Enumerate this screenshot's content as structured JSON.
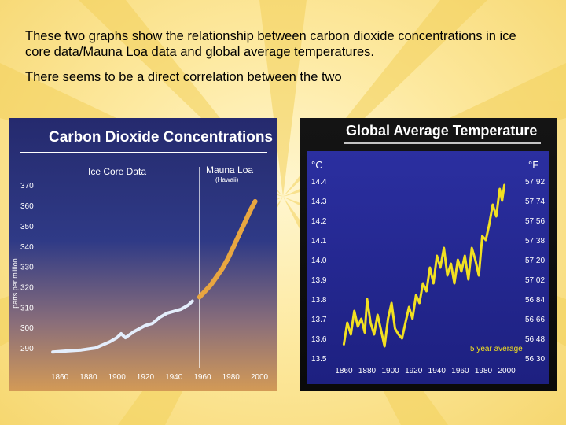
{
  "slide": {
    "paragraph1": "These two graphs show the relationship between carbon dioxide concentrations in ice core data/Mauna Loa data and global average temperatures.",
    "paragraph2": "There seems to be a direct correlation between the two"
  },
  "colors": {
    "co2_ice_line": "#e4eefc",
    "co2_mauna_line": "#e8a640",
    "temp_line": "#f2e021"
  },
  "chart_data": [
    {
      "type": "line",
      "title": "Carbon Dioxide Concentrations",
      "ylabel": "parts per million",
      "xlim": [
        1850,
        2000
      ],
      "ylim": [
        285,
        372
      ],
      "x_ticks": [
        1860,
        1880,
        1900,
        1920,
        1940,
        1960,
        1980,
        2000
      ],
      "x_tick_labels": [
        "1860",
        "1880",
        "1900",
        "1920",
        "1940",
        "1960",
        "1980",
        "2000"
      ],
      "y_ticks": [
        290,
        300,
        310,
        320,
        330,
        340,
        350,
        360,
        370
      ],
      "y_tick_labels": [
        "290",
        "300",
        "310",
        "320",
        "330",
        "340",
        "350",
        "360",
        "370"
      ],
      "divider_x": 1958,
      "annotations": {
        "ice_core": "Ice Core Data",
        "mauna_loa": "Mauna Loa",
        "hawaii": "(Hawaii)"
      },
      "series": [
        {
          "name": "Ice Core Data",
          "x": [
            1855,
            1865,
            1875,
            1885,
            1895,
            1900,
            1903,
            1906,
            1912,
            1920,
            1925,
            1930,
            1935,
            1940,
            1945,
            1950,
            1953
          ],
          "y": [
            288,
            288.5,
            289,
            290,
            293,
            295,
            297,
            295,
            298,
            301,
            302,
            305,
            307,
            308,
            309,
            311,
            313
          ]
        },
        {
          "name": "Mauna Loa",
          "x": [
            1958,
            1962,
            1966,
            1970,
            1974,
            1978,
            1982,
            1986,
            1990,
            1994,
            1997
          ],
          "y": [
            315,
            318,
            321,
            325,
            329,
            334,
            340,
            346,
            352,
            358,
            362
          ]
        }
      ]
    },
    {
      "type": "line",
      "title": "Global Average Temperature",
      "ylabel_left": "°C",
      "ylabel_right": "°F",
      "xlim": [
        1855,
        2005
      ],
      "ylim": [
        13.5,
        14.4
      ],
      "x_ticks": [
        1860,
        1880,
        1900,
        1920,
        1940,
        1960,
        1980,
        2000
      ],
      "x_tick_labels": [
        "1860",
        "1880",
        "1900",
        "1920",
        "1940",
        "1960",
        "1980",
        "2000"
      ],
      "y_ticks": [
        13.5,
        13.6,
        13.7,
        13.8,
        13.9,
        14.0,
        14.1,
        14.2,
        14.3,
        14.4
      ],
      "y_tick_labels": [
        "13.5",
        "13.6",
        "13.7",
        "13.8",
        "13.9",
        "14.0",
        "14.1",
        "14.2",
        "14.3",
        "14.4"
      ],
      "y_right_tick_labels": [
        "56.30",
        "56.48",
        "56.66",
        "56.84",
        "57.02",
        "57.20",
        "57.38",
        "57.56",
        "57.74",
        "57.92"
      ],
      "annotation": "5 year average",
      "series": [
        {
          "name": "5 year average",
          "x": [
            1860,
            1863,
            1866,
            1869,
            1872,
            1875,
            1878,
            1880,
            1883,
            1886,
            1889,
            1892,
            1895,
            1898,
            1901,
            1904,
            1907,
            1910,
            1913,
            1916,
            1919,
            1922,
            1925,
            1928,
            1931,
            1934,
            1937,
            1940,
            1943,
            1946,
            1949,
            1952,
            1955,
            1958,
            1961,
            1964,
            1967,
            1970,
            1973,
            1976,
            1979,
            1982,
            1985,
            1988,
            1991,
            1994,
            1996,
            1998
          ],
          "y": [
            13.57,
            13.68,
            13.62,
            13.74,
            13.66,
            13.7,
            13.63,
            13.8,
            13.68,
            13.62,
            13.72,
            13.64,
            13.56,
            13.7,
            13.78,
            13.65,
            13.62,
            13.6,
            13.68,
            13.76,
            13.7,
            13.82,
            13.78,
            13.88,
            13.84,
            13.96,
            13.88,
            14.02,
            13.96,
            14.06,
            13.92,
            13.98,
            13.88,
            14.0,
            13.94,
            14.02,
            13.9,
            14.06,
            14.0,
            13.92,
            14.12,
            14.1,
            14.18,
            14.28,
            14.22,
            14.36,
            14.3,
            14.38
          ]
        }
      ]
    }
  ]
}
